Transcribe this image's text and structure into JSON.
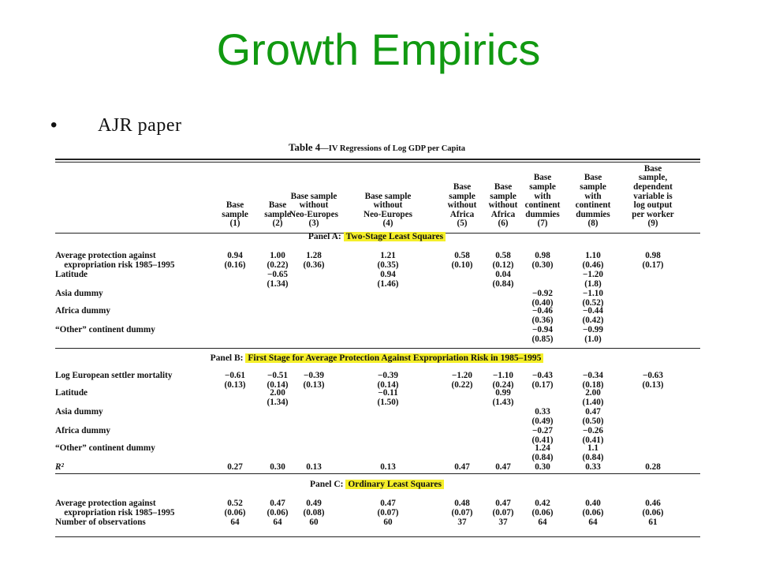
{
  "slide": {
    "title": "Growth Empirics",
    "bullet_symbol": "•",
    "bullet_text": "AJR paper"
  },
  "table": {
    "title_main": "Table 4",
    "title_rest": "—IV Regressions of Log GDP per Capita",
    "columns": [
      {
        "lines": [
          "Base",
          "sample",
          "(1)"
        ]
      },
      {
        "lines": [
          "Base",
          "sample",
          "(2)"
        ]
      },
      {
        "lines": [
          "Base sample",
          "without",
          "Neo-Europes",
          "(3)"
        ]
      },
      {
        "lines": [
          "Base sample",
          "without",
          "Neo-Europes",
          "(4)"
        ]
      },
      {
        "lines": [
          "Base",
          "sample",
          "without",
          "Africa",
          "(5)"
        ]
      },
      {
        "lines": [
          "Base",
          "sample",
          "without",
          "Africa",
          "(6)"
        ]
      },
      {
        "lines": [
          "Base",
          "sample",
          "with",
          "continent",
          "dummies",
          "(7)"
        ]
      },
      {
        "lines": [
          "Base",
          "sample",
          "with",
          "continent",
          "dummies",
          "(8)"
        ]
      },
      {
        "lines": [
          "Base",
          "sample,",
          "dependent",
          "variable is",
          "log output",
          "per worker",
          "(9)"
        ]
      }
    ],
    "panel_a": {
      "prefix": "Panel A:",
      "name": "Two-Stage Least Squares",
      "rows": [
        {
          "label": [
            "Average protection against",
            "    expropriation risk 1985–1995"
          ],
          "cells": [
            [
              "0.94",
              "(0.16)"
            ],
            [
              "1.00",
              "(0.22)"
            ],
            [
              "1.28",
              "(0.36)"
            ],
            [
              "1.21",
              "(0.35)"
            ],
            [
              "0.58",
              "(0.10)"
            ],
            [
              "0.58",
              "(0.12)"
            ],
            [
              "0.98",
              "(0.30)"
            ],
            [
              "1.10",
              "(0.46)"
            ],
            [
              "0.98",
              "(0.17)"
            ]
          ]
        },
        {
          "label": [
            "Latitude"
          ],
          "cells": [
            [],
            [
              "−0.65",
              "(1.34)"
            ],
            [],
            [
              "0.94",
              "(1.46)"
            ],
            [],
            [
              "0.04",
              "(0.84)"
            ],
            [],
            [
              "−1.20",
              "(1.8)"
            ],
            []
          ]
        },
        {
          "label": [
            "Asia dummy"
          ],
          "cells": [
            [],
            [],
            [],
            [],
            [],
            [],
            [
              "−0.92",
              "(0.40)"
            ],
            [
              "−1.10",
              "(0.52)"
            ],
            []
          ]
        },
        {
          "label": [
            "Africa dummy"
          ],
          "cells": [
            [],
            [],
            [],
            [],
            [],
            [],
            [
              "−0.46",
              "(0.36)"
            ],
            [
              "−0.44",
              "(0.42)"
            ],
            []
          ]
        },
        {
          "label": [
            "“Other” continent dummy"
          ],
          "cells": [
            [],
            [],
            [],
            [],
            [],
            [],
            [
              "−0.94",
              "(0.85)"
            ],
            [
              "−0.99",
              "(1.0)"
            ],
            []
          ]
        }
      ]
    },
    "panel_b": {
      "prefix": "Panel B:",
      "name": "First Stage for Average Protection Against Expropriation Risk in 1985–1995",
      "rows": [
        {
          "label": [
            "Log European settler mortality"
          ],
          "cells": [
            [
              "−0.61",
              "(0.13)"
            ],
            [
              "−0.51",
              "(0.14)"
            ],
            [
              "−0.39",
              "(0.13)"
            ],
            [
              "−0.39",
              "(0.14)"
            ],
            [
              "−1.20",
              "(0.22)"
            ],
            [
              "−1.10",
              "(0.24)"
            ],
            [
              "−0.43",
              "(0.17)"
            ],
            [
              "−0.34",
              "(0.18)"
            ],
            [
              "−0.63",
              "(0.13)"
            ]
          ]
        },
        {
          "label": [
            "Latitude"
          ],
          "cells": [
            [],
            [
              "2.00",
              "(1.34)"
            ],
            [],
            [
              "−0.11",
              "(1.50)"
            ],
            [],
            [
              "0.99",
              "(1.43)"
            ],
            [],
            [
              "2.00",
              "(1.40)"
            ],
            []
          ]
        },
        {
          "label": [
            "Asia dummy"
          ],
          "cells": [
            [],
            [],
            [],
            [],
            [],
            [],
            [
              "0.33",
              "(0.49)"
            ],
            [
              "0.47",
              "(0.50)"
            ],
            []
          ]
        },
        {
          "label": [
            "Africa dummy"
          ],
          "cells": [
            [],
            [],
            [],
            [],
            [],
            [],
            [
              "−0.27",
              "(0.41)"
            ],
            [
              "−0.26",
              "(0.41)"
            ],
            []
          ]
        },
        {
          "label": [
            "“Other” continent dummy"
          ],
          "cells": [
            [],
            [],
            [],
            [],
            [],
            [],
            [
              "1.24",
              "(0.84)"
            ],
            [
              "1.1",
              "(0.84)"
            ],
            []
          ]
        },
        {
          "label": [
            "R²"
          ],
          "italic": true,
          "cells": [
            [
              "0.27"
            ],
            [
              "0.30"
            ],
            [
              "0.13"
            ],
            [
              "0.13"
            ],
            [
              "0.47"
            ],
            [
              "0.47"
            ],
            [
              "0.30"
            ],
            [
              "0.33"
            ],
            [
              "0.28"
            ]
          ]
        }
      ]
    },
    "panel_c": {
      "prefix": "Panel C:",
      "name": "Ordinary Least Squares",
      "rows": [
        {
          "label": [
            "Average protection against",
            "    expropriation risk 1985–1995"
          ],
          "cells": [
            [
              "0.52",
              "(0.06)"
            ],
            [
              "0.47",
              "(0.06)"
            ],
            [
              "0.49",
              "(0.08)"
            ],
            [
              "0.47",
              "(0.07)"
            ],
            [
              "0.48",
              "(0.07)"
            ],
            [
              "0.47",
              "(0.07)"
            ],
            [
              "0.42",
              "(0.06)"
            ],
            [
              "0.40",
              "(0.06)"
            ],
            [
              "0.46",
              "(0.06)"
            ]
          ]
        },
        {
          "label": [
            "Number of observations"
          ],
          "cells": [
            [
              "64"
            ],
            [
              "64"
            ],
            [
              "60"
            ],
            [
              "60"
            ],
            [
              "37"
            ],
            [
              "37"
            ],
            [
              "64"
            ],
            [
              "64"
            ],
            [
              "61"
            ]
          ]
        }
      ]
    }
  },
  "colors": {
    "title": "#119911",
    "highlight": "#f5ef2a"
  }
}
